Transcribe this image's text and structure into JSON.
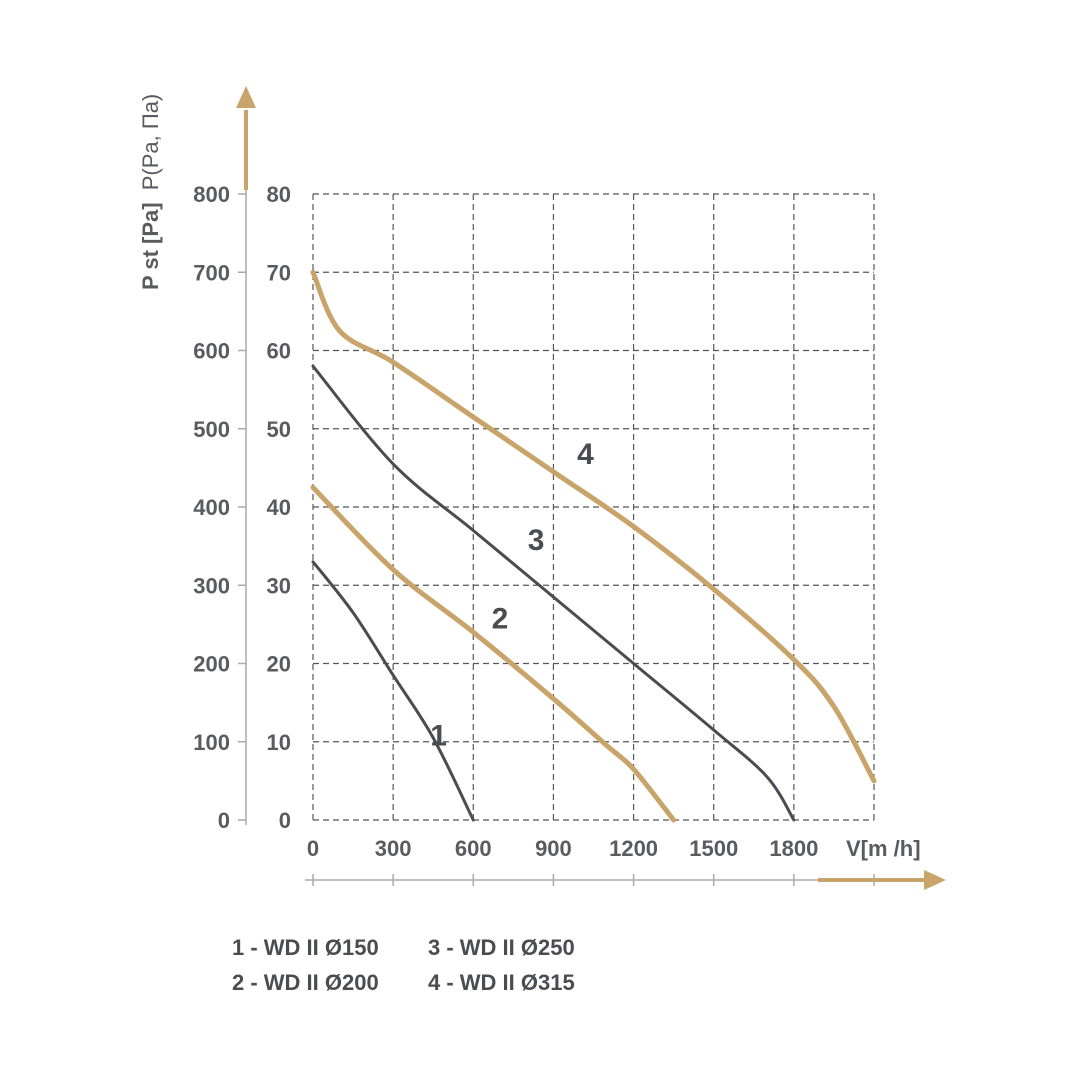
{
  "chart_data": {
    "type": "line",
    "xlabel": "V[m /h]",
    "ylabel_bold": "P st [Pa]",
    "ylabel_regular": "P(Pa, Па)",
    "x_ticks": [
      "0",
      "300",
      "600",
      "900",
      "1200",
      "1500",
      "1800"
    ],
    "y_ticks_outer": [
      "0",
      "100",
      "200",
      "300",
      "400",
      "500",
      "600",
      "700",
      "800"
    ],
    "y_ticks_inner": [
      "0",
      "10",
      "20",
      "30",
      "40",
      "50",
      "60",
      "70",
      "80"
    ],
    "xlim": [
      0,
      2100
    ],
    "ylim": [
      0,
      800
    ],
    "grid": true,
    "series": [
      {
        "name": "1",
        "color": "#4b4c52",
        "x": [
          0,
          150,
          300,
          450,
          600
        ],
        "y": [
          330,
          265,
          185,
          105,
          0
        ]
      },
      {
        "name": "2",
        "color": "#c9a46a",
        "x": [
          0,
          300,
          600,
          900,
          1100,
          1200,
          1350
        ],
        "y": [
          425,
          320,
          240,
          155,
          95,
          65,
          0
        ]
      },
      {
        "name": "3",
        "color": "#4b4c52",
        "x": [
          0,
          300,
          600,
          900,
          1200,
          1500,
          1700,
          1800
        ],
        "y": [
          580,
          455,
          370,
          285,
          200,
          115,
          55,
          0
        ]
      },
      {
        "name": "4",
        "color": "#c9a46a",
        "x": [
          0,
          100,
          300,
          600,
          900,
          1200,
          1500,
          1800,
          1950,
          2100
        ],
        "y": [
          700,
          625,
          585,
          515,
          445,
          375,
          295,
          205,
          145,
          50
        ]
      }
    ],
    "legend": [
      {
        "label": "1 - WD II Ø150"
      },
      {
        "label": "2 - WD II Ø200"
      },
      {
        "label": "3 - WD II Ø250"
      },
      {
        "label": "4 - WD II Ø315"
      }
    ]
  },
  "colors": {
    "axis_accent": "#c9a46a",
    "dark": "#4b4c52",
    "grid": "#55565b"
  }
}
